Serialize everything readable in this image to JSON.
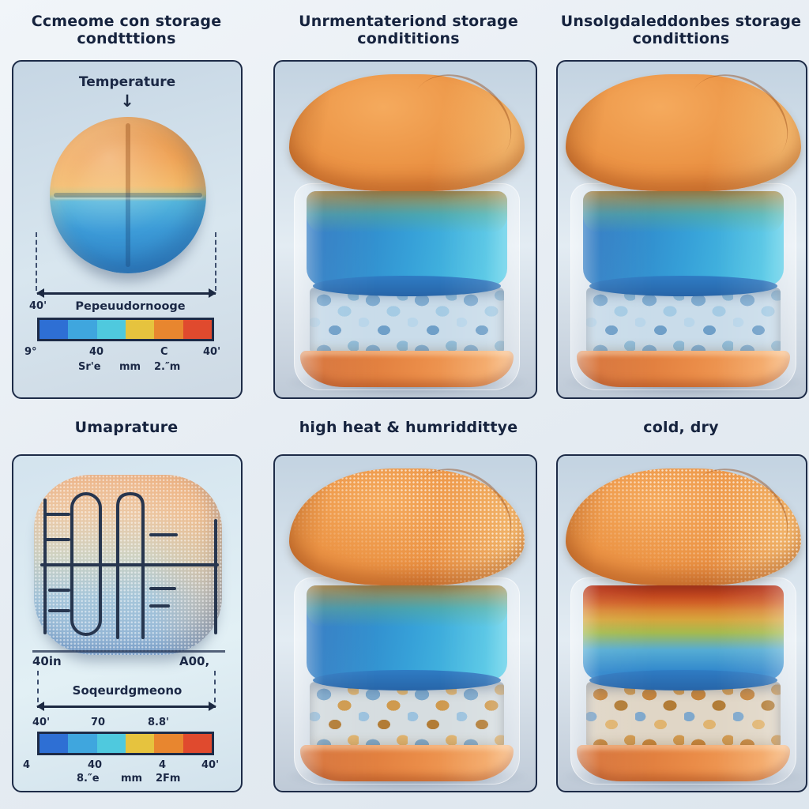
{
  "titles": {
    "r1c1": "Ccmeome con storage condtttions",
    "r1c2": "Unrmentateriond storage condititions",
    "r1c3": "Unsolgdaleddonbes storage condittions",
    "r2c1": "Umaprature",
    "r2c2": "high heat & humriddittye",
    "r2c3": "cold, dry"
  },
  "accent_color": "#1c2942",
  "scale_colors": [
    "#2e6fd4",
    "#3fa6de",
    "#4fc9de",
    "#e6c33e",
    "#e8862f",
    "#e04a2e"
  ],
  "panels": {
    "temperature_diagram": {
      "heading": "Temperature",
      "down_arrow": "↓",
      "range_start_label": "40'",
      "range_label": "Pepeuudornooge",
      "ticks_below": [
        "9°",
        "40",
        "C",
        "40'"
      ],
      "ticks_sub": [
        "Sr'e",
        "mm",
        "2.″m"
      ]
    },
    "humidity_diagram": {
      "pill_left_label": "40in",
      "pill_right_label": "A00,",
      "range_label": "Soqeurdgmeono",
      "ticks_above": [
        "40'",
        "70",
        "8.8'"
      ],
      "ticks_below": [
        "4",
        "40",
        "4",
        "40'"
      ],
      "ticks_sub": [
        "8.″e",
        "mm",
        "2Fm"
      ]
    }
  }
}
